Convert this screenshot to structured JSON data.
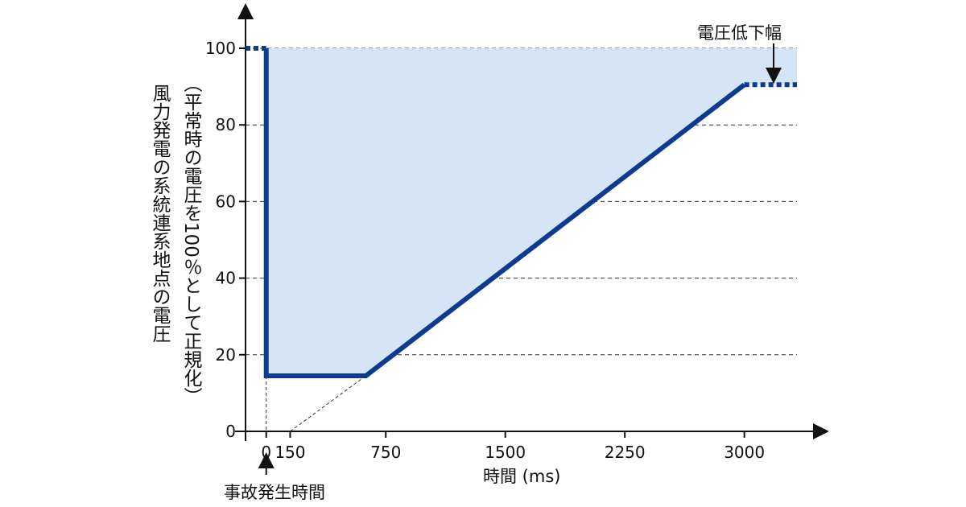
{
  "chart_data": {
    "type": "line",
    "xlabel": "時間 (ms)",
    "ylabel": "風力発電の系統連系地点の電圧",
    "ylabel_sub": "（平常時の電圧を100％として正規化）",
    "x_ticks": [
      "0",
      "150",
      "750",
      "1500",
      "2250",
      "3000"
    ],
    "x_tick_values": [
      0,
      150,
      750,
      1500,
      2250,
      3000
    ],
    "y_ticks": [
      "0",
      "20",
      "40",
      "60",
      "80",
      "100"
    ],
    "y_tick_values": [
      0,
      20,
      40,
      60,
      80,
      100
    ],
    "xlim": [
      -130,
      3330
    ],
    "ylim": [
      0,
      100
    ],
    "grid": "horizontal dashed",
    "series": [
      {
        "x": [
          0,
          0,
          625,
          3000
        ],
        "y": [
          100,
          14.5,
          14.5,
          90.5
        ]
      }
    ],
    "dotted_segments": [
      {
        "x": [
          -130,
          0
        ],
        "y": [
          100,
          100
        ]
      },
      {
        "x": [
          3000,
          3330
        ],
        "y": [
          90.5,
          90.5
        ]
      }
    ],
    "extrapolation_line": {
      "x": [
        150,
        625
      ],
      "y": [
        0,
        14.5
      ]
    },
    "fill_top": 100,
    "annotations": {
      "fault_time": "事故発生時間",
      "voltage_drop": "電圧低下幅"
    },
    "colors": {
      "line": "#0d3c8f",
      "fill": "#d6e5f5",
      "grid": "#333333"
    }
  }
}
